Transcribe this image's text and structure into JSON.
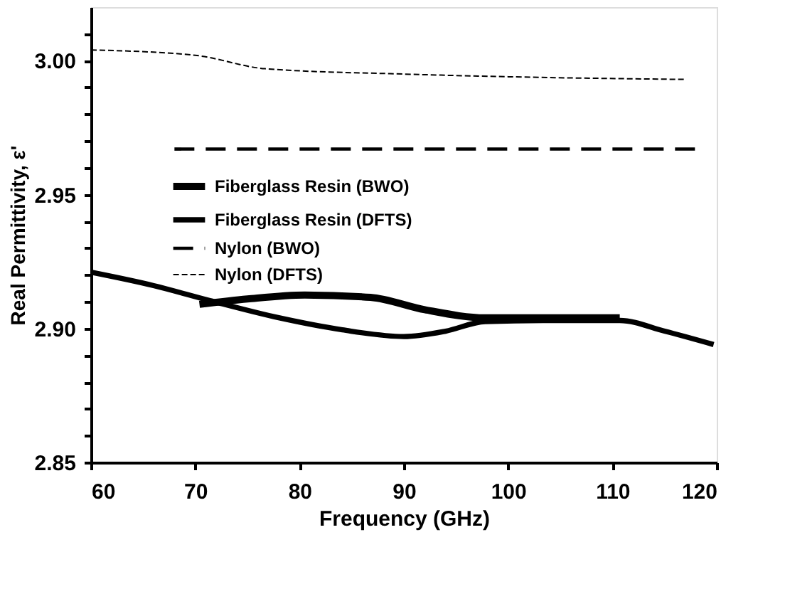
{
  "chart_data": {
    "type": "line",
    "xlabel": "Frequency (GHz)",
    "ylabel": "Real Permittivity, ε'",
    "xlim": [
      60,
      120
    ],
    "xticks": [
      60,
      70,
      80,
      90,
      100,
      110,
      120
    ],
    "ylim": [
      2.85,
      3.02
    ],
    "yticks": [
      2.85,
      {
        "value": 2.86,
        "label": null
      },
      {
        "value": 2.87,
        "label": null
      },
      {
        "value": 2.88,
        "label": null
      },
      {
        "value": 2.89,
        "label": null
      },
      "2.90",
      {
        "value": 2.91,
        "label": null
      },
      {
        "value": 2.92,
        "label": null
      },
      {
        "value": 2.93,
        "label": null
      },
      {
        "value": 2.94,
        "label": null
      },
      2.95,
      {
        "value": 2.96,
        "label": null
      },
      {
        "value": 2.97,
        "label": null
      },
      {
        "value": 2.98,
        "label": null
      },
      {
        "value": 2.99,
        "label": null
      },
      "3.00",
      {
        "value": 3.01,
        "label": null
      }
    ],
    "grid": false,
    "legend": "top left",
    "marker": "none",
    "series": [
      {
        "name": "Fiberglass Resin (BWO)",
        "color": "#000000",
        "line_style": "solid",
        "x": [
          70.4,
          75,
          80.5,
          86.8,
          92,
          97.8,
          104,
          110.7
        ],
        "values": [
          2.909,
          2.911,
          2.9125,
          2.9116,
          2.907,
          2.904,
          2.904,
          2.904
        ]
      },
      {
        "name": "Fiberglass Resin (DFTS)",
        "color": "#000000",
        "line_style": "solid",
        "x": [
          60,
          66,
          71.4,
          78,
          84.1,
          90,
          94,
          97.8,
          104,
          110.7,
          115,
          119.7
        ],
        "values": [
          2.921,
          2.916,
          2.9104,
          2.904,
          2.8995,
          2.897,
          2.899,
          2.9026,
          2.903,
          2.903,
          2.899,
          2.894
        ]
      },
      {
        "name": "Nylon (BWO)",
        "color": "#000000",
        "line_style": "dashed",
        "x": [
          68,
          118
        ],
        "values": [
          2.967,
          2.967
        ]
      },
      {
        "name": "Nylon (DFTS)",
        "color": "#000000",
        "line_style": "dotted",
        "x": [
          60,
          70,
          76.7,
          90,
          100,
          117
        ],
        "values": [
          3.004,
          3.002,
          2.997,
          2.995,
          2.994,
          2.993
        ]
      }
    ]
  }
}
